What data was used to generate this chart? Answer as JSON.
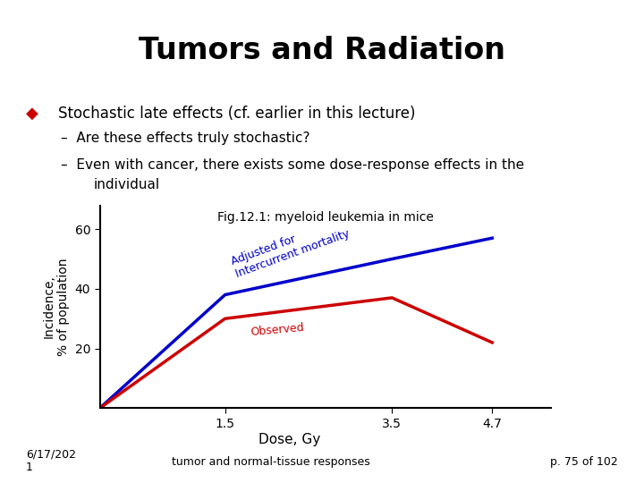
{
  "title": "Tumors and Radiation",
  "title_fontsize": 24,
  "title_fontweight": "bold",
  "red_line_color": "#cc0000",
  "blue_line_color": "#0000cc",
  "bullet_color": "#cc0000",
  "bullet_char": "◆",
  "bullet_text": "Stochastic late effects (cf. earlier in this lecture)",
  "sub1": "Are these effects truly stochastic?",
  "sub2_line1": "Even with cancer, there exists some dose-response effects in the",
  "sub2_line2": "individual",
  "fig_title": "Fig.12.1: myeloid leukemia in mice",
  "xlabel": "Dose, Gy",
  "ylabel": "Incidence,\n% of population",
  "x_ticks": [
    1.5,
    3.5,
    4.7
  ],
  "y_ticks": [
    20,
    40,
    60
  ],
  "xlim": [
    0,
    5.4
  ],
  "ylim": [
    0,
    68
  ],
  "blue_x": [
    0,
    1.5,
    3.5,
    4.7
  ],
  "blue_y": [
    0,
    38,
    50,
    57
  ],
  "red_x": [
    0,
    1.5,
    3.5,
    4.7
  ],
  "red_y": [
    0,
    30,
    37,
    22
  ],
  "label_adjusted": "Adjusted for\nIntercurrent mortality",
  "label_observed": "Observed",
  "footer_left": "6/17/202\n1",
  "footer_center": "tumor and normal-tissue responses",
  "footer_right": "p. 75 of 102",
  "hr_color": "#cc0000",
  "bg_color": "#ffffff",
  "bullet_fontsize": 13,
  "text_fontsize": 12,
  "sub_fontsize": 11
}
